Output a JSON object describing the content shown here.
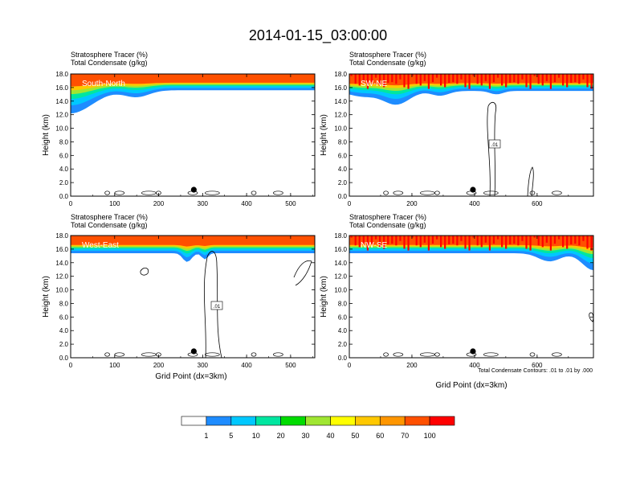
{
  "title": "2014-01-15_03:00:00",
  "panel_subtitle_1": "Stratosphere Tracer   (%)",
  "panel_subtitle_2": "Total Condensate   (g/kg)",
  "y_axis_label": "Height (km)",
  "x_axis_label": "Grid Point (dx=3km)",
  "contour_note": "Total Condensate Contours: .01 to .01 by .000",
  "colors": {
    "levels": [
      "#ffffff",
      "#1e8cff",
      "#00c8ff",
      "#00e6a0",
      "#00dc00",
      "#a0e632",
      "#ffff00",
      "#ffc800",
      "#ff9600",
      "#ff5000",
      "#ff0000"
    ],
    "contour": "#000000"
  },
  "chart_data": [
    {
      "type": "heatmap",
      "label": "South-North",
      "xlim": [
        0,
        555
      ],
      "ylim": [
        0,
        18
      ],
      "x_ticks": [
        "0",
        "100",
        "200",
        "300",
        "400",
        "500"
      ],
      "y_ticks": [
        "0.0",
        "2.0",
        "4.0",
        "6.0",
        "8.0",
        "10.0",
        "12.0",
        "14.0",
        "16.0",
        "18.0"
      ],
      "marker_x": 280,
      "tracer_base_km": 15.6,
      "contour_labels": []
    },
    {
      "type": "heatmap",
      "label": "SW-NE",
      "xlim": [
        0,
        780
      ],
      "ylim": [
        0,
        18
      ],
      "x_ticks": [
        "0",
        "200",
        "400",
        "600"
      ],
      "y_ticks": [
        "0.0",
        "2.0",
        "4.0",
        "6.0",
        "8.0",
        "10.0",
        "12.0",
        "14.0",
        "16.0",
        "18.0"
      ],
      "marker_x": 395,
      "tracer_base_km": 15.5,
      "contour_labels": [
        ".01"
      ]
    },
    {
      "type": "heatmap",
      "label": "West-East",
      "xlim": [
        0,
        555
      ],
      "ylim": [
        0,
        18
      ],
      "x_ticks": [
        "0",
        "100",
        "200",
        "300",
        "400",
        "500"
      ],
      "y_ticks": [
        "0.0",
        "2.0",
        "4.0",
        "6.0",
        "8.0",
        "10.0",
        "12.0",
        "14.0",
        "16.0",
        "18.0"
      ],
      "marker_x": 280,
      "tracer_base_km": 15.4,
      "contour_labels": [
        ".01"
      ]
    },
    {
      "type": "heatmap",
      "label": "NW-SE",
      "xlim": [
        0,
        780
      ],
      "ylim": [
        0,
        18
      ],
      "x_ticks": [
        "0",
        "200",
        "400",
        "600"
      ],
      "y_ticks": [
        "0.0",
        "2.0",
        "4.0",
        "6.0",
        "8.0",
        "10.0",
        "12.0",
        "14.0",
        "16.0",
        "18.0"
      ],
      "marker_x": 395,
      "tracer_base_km": 15.4,
      "contour_labels": []
    }
  ],
  "colorbar": {
    "labels": [
      "1",
      "5",
      "10",
      "20",
      "30",
      "40",
      "50",
      "60",
      "70",
      "100"
    ]
  }
}
